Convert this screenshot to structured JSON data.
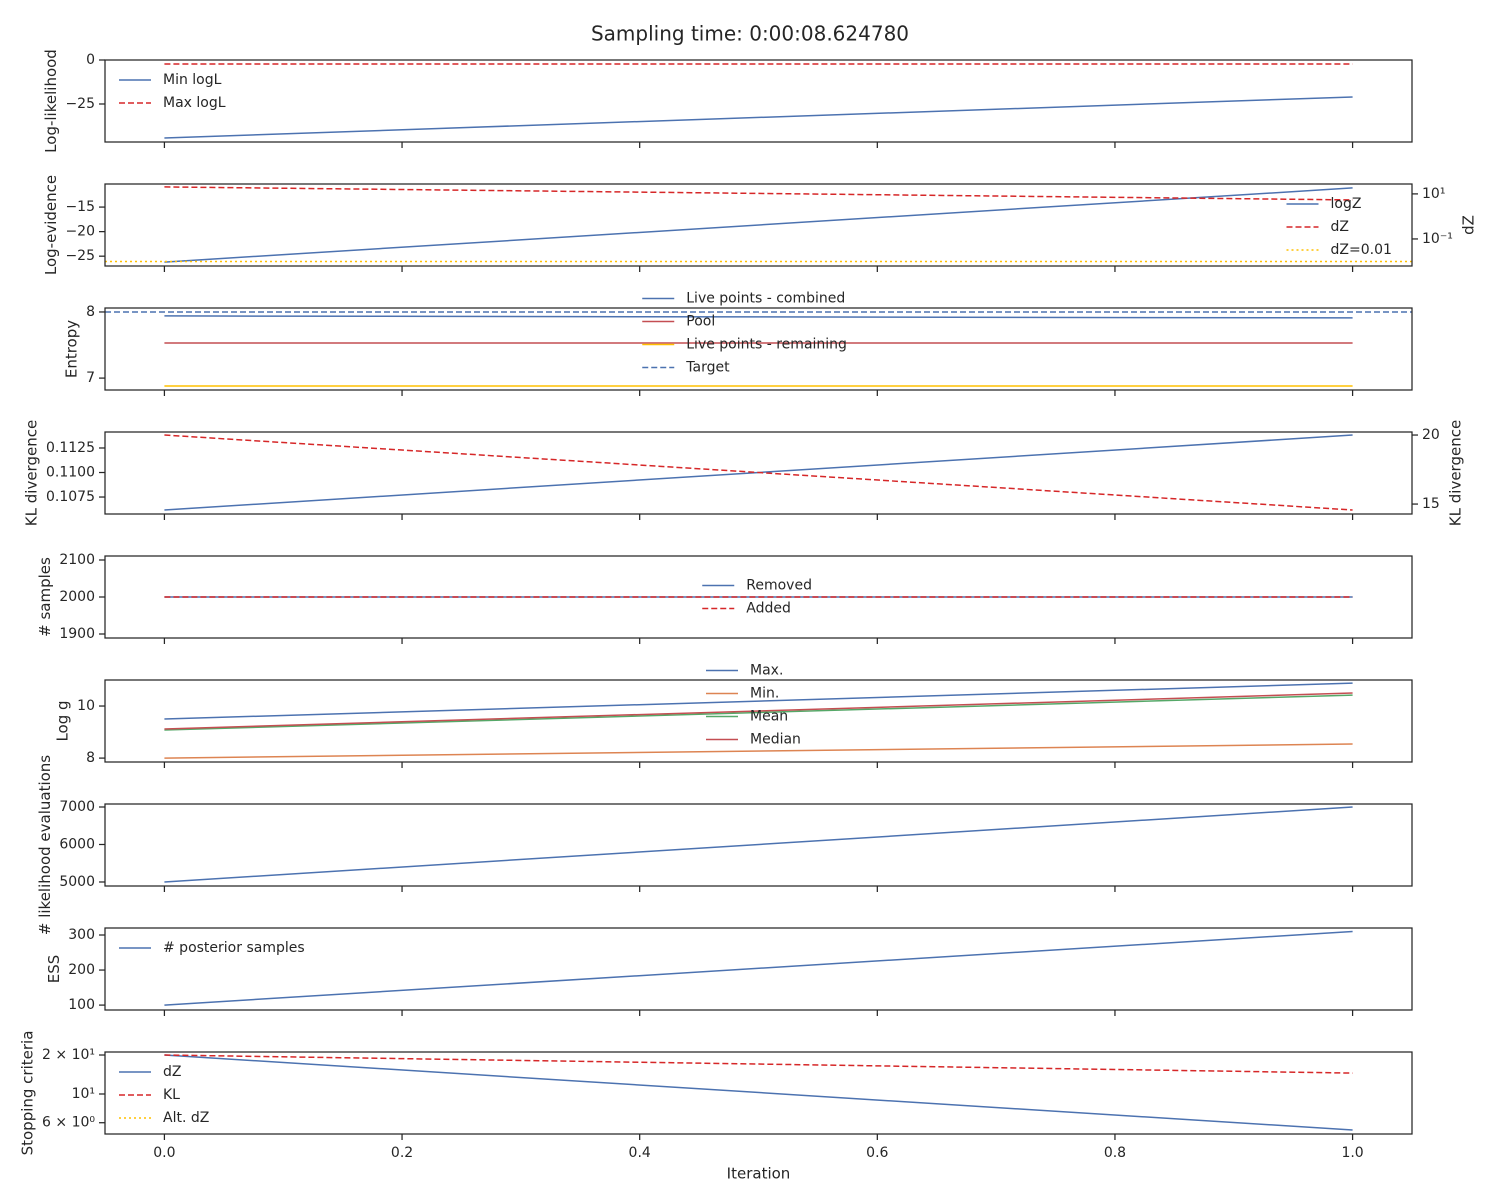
{
  "title": "Sampling time: 0:00:08.624780",
  "chart_data": [
    {
      "type": "line",
      "ylabel": "Log-likelihood",
      "x": [
        0,
        1
      ],
      "xlim": [
        -0.05,
        1.05
      ],
      "xticks": [
        0,
        0.2,
        0.4,
        0.6,
        0.8,
        1.0
      ],
      "ylim": [
        -46.6,
        0
      ],
      "yticks": [
        {
          "value": -25,
          "label": "−25"
        },
        0
      ],
      "legend": "upper left",
      "series": [
        {
          "name": "Min logL",
          "color": "#4c72b0",
          "dash": "solid",
          "values": [
            -44.3,
            -21
          ]
        },
        {
          "name": "Max logL",
          "color": "#d62728",
          "dash": "dashed",
          "values": [
            -2.3,
            -2.3
          ]
        }
      ]
    },
    {
      "type": "line",
      "ylabel": "Log-evidence",
      "y2label": "dZ",
      "x": [
        0,
        1
      ],
      "xlim": [
        -0.05,
        1.05
      ],
      "xticks": [
        0,
        0.2,
        0.4,
        0.6,
        0.8,
        1.0
      ],
      "ylim": [
        -27,
        -10.3
      ],
      "yticks": [
        {
          "value": -25,
          "label": "−25"
        },
        {
          "value": -20,
          "label": "−20"
        },
        {
          "value": -15,
          "label": "−15"
        }
      ],
      "y2lim": [
        0.0063,
        27.5
      ],
      "y2scale": "log",
      "y2ticks": [
        {
          "value": 0.1,
          "label": "10⁻¹"
        },
        {
          "value": 10,
          "label": "10¹"
        }
      ],
      "legend": "lower right",
      "series": [
        {
          "name": "logZ",
          "color": "#4c72b0",
          "dash": "solid",
          "values": [
            -26.2,
            -11.1
          ]
        },
        {
          "name": "dZ",
          "color": "#d62728",
          "dash": "dashed",
          "axis": "y2",
          "values": [
            20.4,
            5.4
          ]
        },
        {
          "name": "dZ=0.01",
          "color": "#ffc000",
          "dash": "dotted",
          "axis": "y2",
          "x": [
            -0.05,
            1.05
          ],
          "values": [
            0.01,
            0.01
          ]
        }
      ]
    },
    {
      "type": "line",
      "ylabel": "Entropy",
      "x": [
        0,
        1
      ],
      "xlim": [
        -0.05,
        1.05
      ],
      "xticks": [
        0,
        0.2,
        0.4,
        0.6,
        0.8,
        1.0
      ],
      "ylim": [
        6.82,
        8.06
      ],
      "yticks": [
        7,
        8
      ],
      "legend": "center",
      "series": [
        {
          "name": "Live points - combined",
          "color": "#4c72b0",
          "dash": "solid",
          "values": [
            7.94,
            7.91
          ]
        },
        {
          "name": "Pool",
          "color": "#c44e52",
          "dash": "solid",
          "values": [
            7.53,
            7.53
          ]
        },
        {
          "name": "Live points - remaining",
          "color": "#ffc000",
          "dash": "solid",
          "values": [
            6.88,
            6.88
          ]
        },
        {
          "name": "Target",
          "color": "#4c72b0",
          "dash": "dashed",
          "x": [
            -0.05,
            1.05
          ],
          "values": [
            8,
            8
          ]
        }
      ]
    },
    {
      "type": "line",
      "ylabel": "KL divergence",
      "y2label": "KL divergence",
      "x": [
        0,
        1
      ],
      "xlim": [
        -0.05,
        1.05
      ],
      "xticks": [
        0,
        0.2,
        0.4,
        0.6,
        0.8,
        1.0
      ],
      "ylim": [
        0.10577,
        0.11413
      ],
      "yticks": [
        0.1075,
        {
          "value": 0.11,
          "label": "0.1100"
        },
        0.1125
      ],
      "y2lim": [
        14.28,
        20.22
      ],
      "y2ticks": [
        15,
        20
      ],
      "series": [
        {
          "color": "#4c72b0",
          "dash": "solid",
          "values": [
            0.10618,
            0.11382
          ]
        },
        {
          "color": "#d62728",
          "dash": "dashed",
          "axis": "y2",
          "values": [
            20,
            14.57
          ]
        }
      ]
    },
    {
      "type": "line",
      "ylabel": "# samples",
      "x": [
        0,
        1
      ],
      "xlim": [
        -0.05,
        1.05
      ],
      "xticks": [
        0,
        0.2,
        0.4,
        0.6,
        0.8,
        1.0
      ],
      "ylim": [
        1889.2,
        2110.8
      ],
      "yticks": [
        1900,
        2000,
        2100
      ],
      "legend": "center",
      "series": [
        {
          "name": "Removed",
          "color": "#4c72b0",
          "dash": "solid",
          "values": [
            2000,
            2000
          ]
        },
        {
          "name": "Added",
          "color": "#d62728",
          "dash": "dashed",
          "values": [
            2000,
            2000
          ]
        }
      ]
    },
    {
      "type": "line",
      "ylabel": "Log g",
      "x": [
        0,
        1
      ],
      "xlim": [
        -0.05,
        1.05
      ],
      "xticks": [
        0,
        0.2,
        0.4,
        0.6,
        0.8,
        1.0
      ],
      "ylim": [
        7.85,
        11.0
      ],
      "yticks": [
        8,
        10
      ],
      "legend": "center",
      "series": [
        {
          "name": "Max.",
          "color": "#4c72b0",
          "dash": "solid",
          "values": [
            9.5,
            10.88
          ]
        },
        {
          "name": "Min.",
          "color": "#dd8452",
          "dash": "solid",
          "values": [
            8.0,
            8.54
          ]
        },
        {
          "name": "Mean",
          "color": "#55a868",
          "dash": "solid",
          "values": [
            9.08,
            10.42
          ]
        },
        {
          "name": "Median",
          "color": "#c44e52",
          "dash": "solid",
          "values": [
            9.12,
            10.5
          ]
        }
      ]
    },
    {
      "type": "line",
      "ylabel": "# likelihood evaluations",
      "x": [
        0,
        1
      ],
      "xlim": [
        -0.05,
        1.05
      ],
      "xticks": [
        0,
        0.2,
        0.4,
        0.6,
        0.8,
        1.0
      ],
      "ylim": [
        4893,
        7080
      ],
      "yticks": [
        5000,
        6000,
        7000
      ],
      "series": [
        {
          "color": "#4c72b0",
          "dash": "solid",
          "values": [
            5000,
            7000
          ]
        }
      ]
    },
    {
      "type": "line",
      "ylabel": "ESS",
      "x": [
        0,
        1
      ],
      "xlim": [
        -0.05,
        1.05
      ],
      "xticks": [
        0,
        0.2,
        0.4,
        0.6,
        0.8,
        1.0
      ],
      "ylim": [
        86,
        320
      ],
      "yticks": [
        100,
        200,
        300
      ],
      "legend": "upper left",
      "series": [
        {
          "name": "# posterior samples",
          "color": "#4c72b0",
          "dash": "solid",
          "values": [
            100,
            310
          ]
        }
      ]
    },
    {
      "type": "line",
      "ylabel": "Stopping criteria",
      "xlabel": "Iteration",
      "x": [
        0,
        1
      ],
      "xlim": [
        -0.05,
        1.05
      ],
      "xticks": [
        {
          "value": 0,
          "label": "0.0"
        },
        {
          "value": 0.2,
          "label": "0.2"
        },
        {
          "value": 0.4,
          "label": "0.4"
        },
        {
          "value": 0.6,
          "label": "0.6"
        },
        {
          "value": 0.8,
          "label": "0.8"
        },
        {
          "value": 1.0,
          "label": "1.0"
        }
      ],
      "ylim": [
        4.91,
        21.1
      ],
      "yscale": "log",
      "yticks": [
        {
          "value": 6,
          "label": "6 × 10⁰"
        },
        {
          "value": 10,
          "label": "10¹"
        },
        {
          "value": 20,
          "label": "2 × 10¹"
        }
      ],
      "legend": "upper left",
      "series": [
        {
          "name": "dZ",
          "color": "#4c72b0",
          "dash": "solid",
          "values": [
            20,
            5.27
          ]
        },
        {
          "name": "KL",
          "color": "#d62728",
          "dash": "dashed",
          "values": [
            20,
            14.5
          ]
        },
        {
          "name": "Alt. dZ",
          "color": "#ffc000",
          "dash": "dotted",
          "values": [
            null,
            null
          ]
        }
      ]
    }
  ]
}
